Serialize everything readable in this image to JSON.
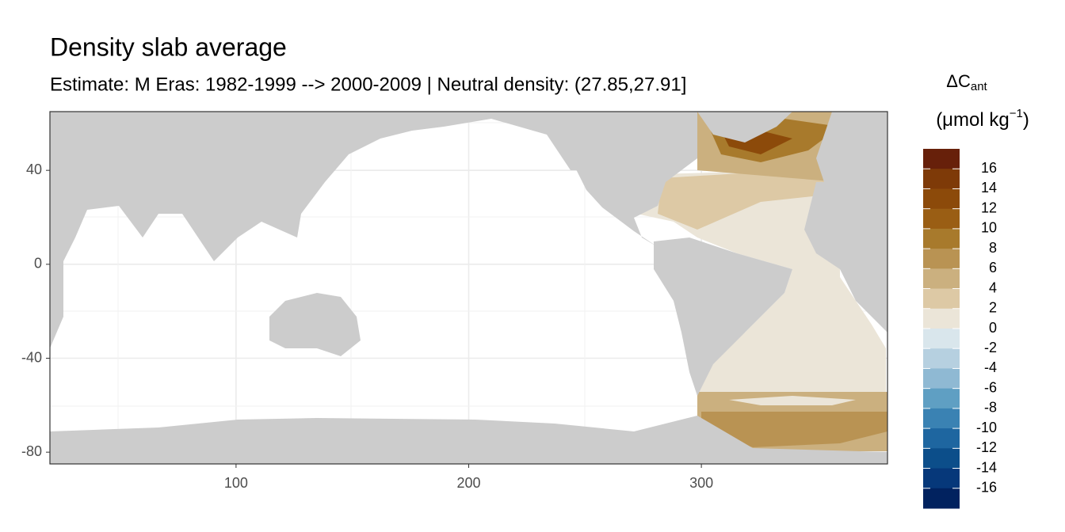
{
  "chart_data": {
    "type": "map",
    "title": "Density slab average",
    "subtitle": "Estimate: M Eras: 1982-1999 --> 2000-2009 | Neutral density: (27.85,27.91]",
    "xlim": [
      20,
      380
    ],
    "ylim": [
      -85,
      65
    ],
    "xticks": [
      100,
      200,
      300
    ],
    "yticks": [
      40,
      0,
      -40,
      -80
    ],
    "grid": true,
    "legend_title": "ΔC",
    "legend_title_sub": "ant",
    "legend_unit": "(μmol kg",
    "legend_unit_sup": "−1",
    "legend_unit_close": ")",
    "colorbar_colors": [
      "#67200a",
      "#7e3a08",
      "#8c4a0a",
      "#9a5e14",
      "#a87a2c",
      "#b99353",
      "#cbb07f",
      "#ddc9a5",
      "#ebe5d8",
      "#d9e6ec",
      "#b6d0e0",
      "#8fb9d3",
      "#5f9fc3",
      "#3a82b3",
      "#1e66a0",
      "#0c4e8a",
      "#06387a",
      "#01225f"
    ],
    "colorbar_ticks": [
      16,
      14,
      12,
      10,
      8,
      6,
      4,
      2,
      0,
      -2,
      -4,
      -6,
      -8,
      -10,
      -12,
      -14,
      -16
    ]
  }
}
